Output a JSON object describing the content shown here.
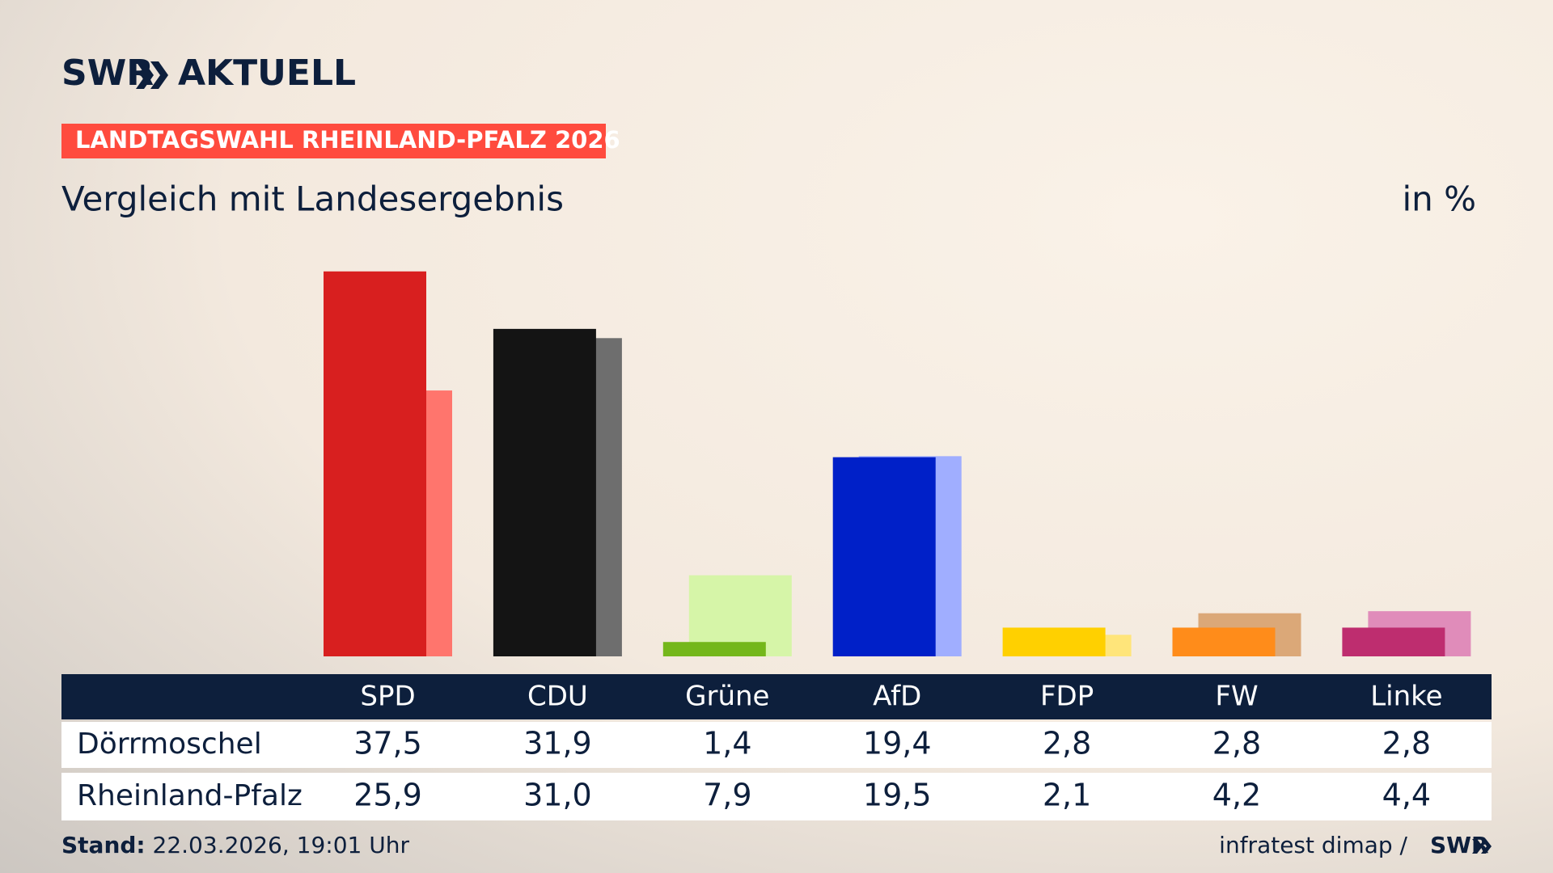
{
  "header": {
    "logo": "SWR",
    "brand": "AKTUELL",
    "banner": "LANDTAGSWAHL RHEINLAND-PFALZ 2026"
  },
  "chart_data": {
    "type": "bar",
    "title": "Vergleich mit Landesergebnis",
    "unit": "in %",
    "categories": [
      "SPD",
      "CDU",
      "Grüne",
      "AfD",
      "FDP",
      "FW",
      "Linke"
    ],
    "series": [
      {
        "name": "Dörrmoschel",
        "colors": [
          "#d81f1f",
          "#141414",
          "#74b71b",
          "#0020c8",
          "#ffd000",
          "#ff8c1a",
          "#be2d6f"
        ],
        "values": [
          37.5,
          31.9,
          1.4,
          19.4,
          2.8,
          2.8,
          2.8
        ],
        "value_labels": [
          "37,5",
          "31,9",
          "1,4",
          "19,4",
          "2,8",
          "2,8",
          "2,8"
        ]
      },
      {
        "name": "Rheinland-Pfalz",
        "colors": [
          "#ff756d",
          "#6e6e6e",
          "#d6f5a8",
          "#a0aeff",
          "#ffe57a",
          "#dba878",
          "#e08cba"
        ],
        "values": [
          25.9,
          31.0,
          7.9,
          19.5,
          2.1,
          4.2,
          4.4
        ],
        "value_labels": [
          "25,9",
          "31,0",
          "7,9",
          "19,5",
          "2,1",
          "4,2",
          "4,4"
        ]
      }
    ]
  },
  "footer": {
    "stand_label": "Stand:",
    "stand_date": "22.03.2026, 19:01 Uhr",
    "source": "infratest dimap /",
    "logo": "SWR"
  }
}
